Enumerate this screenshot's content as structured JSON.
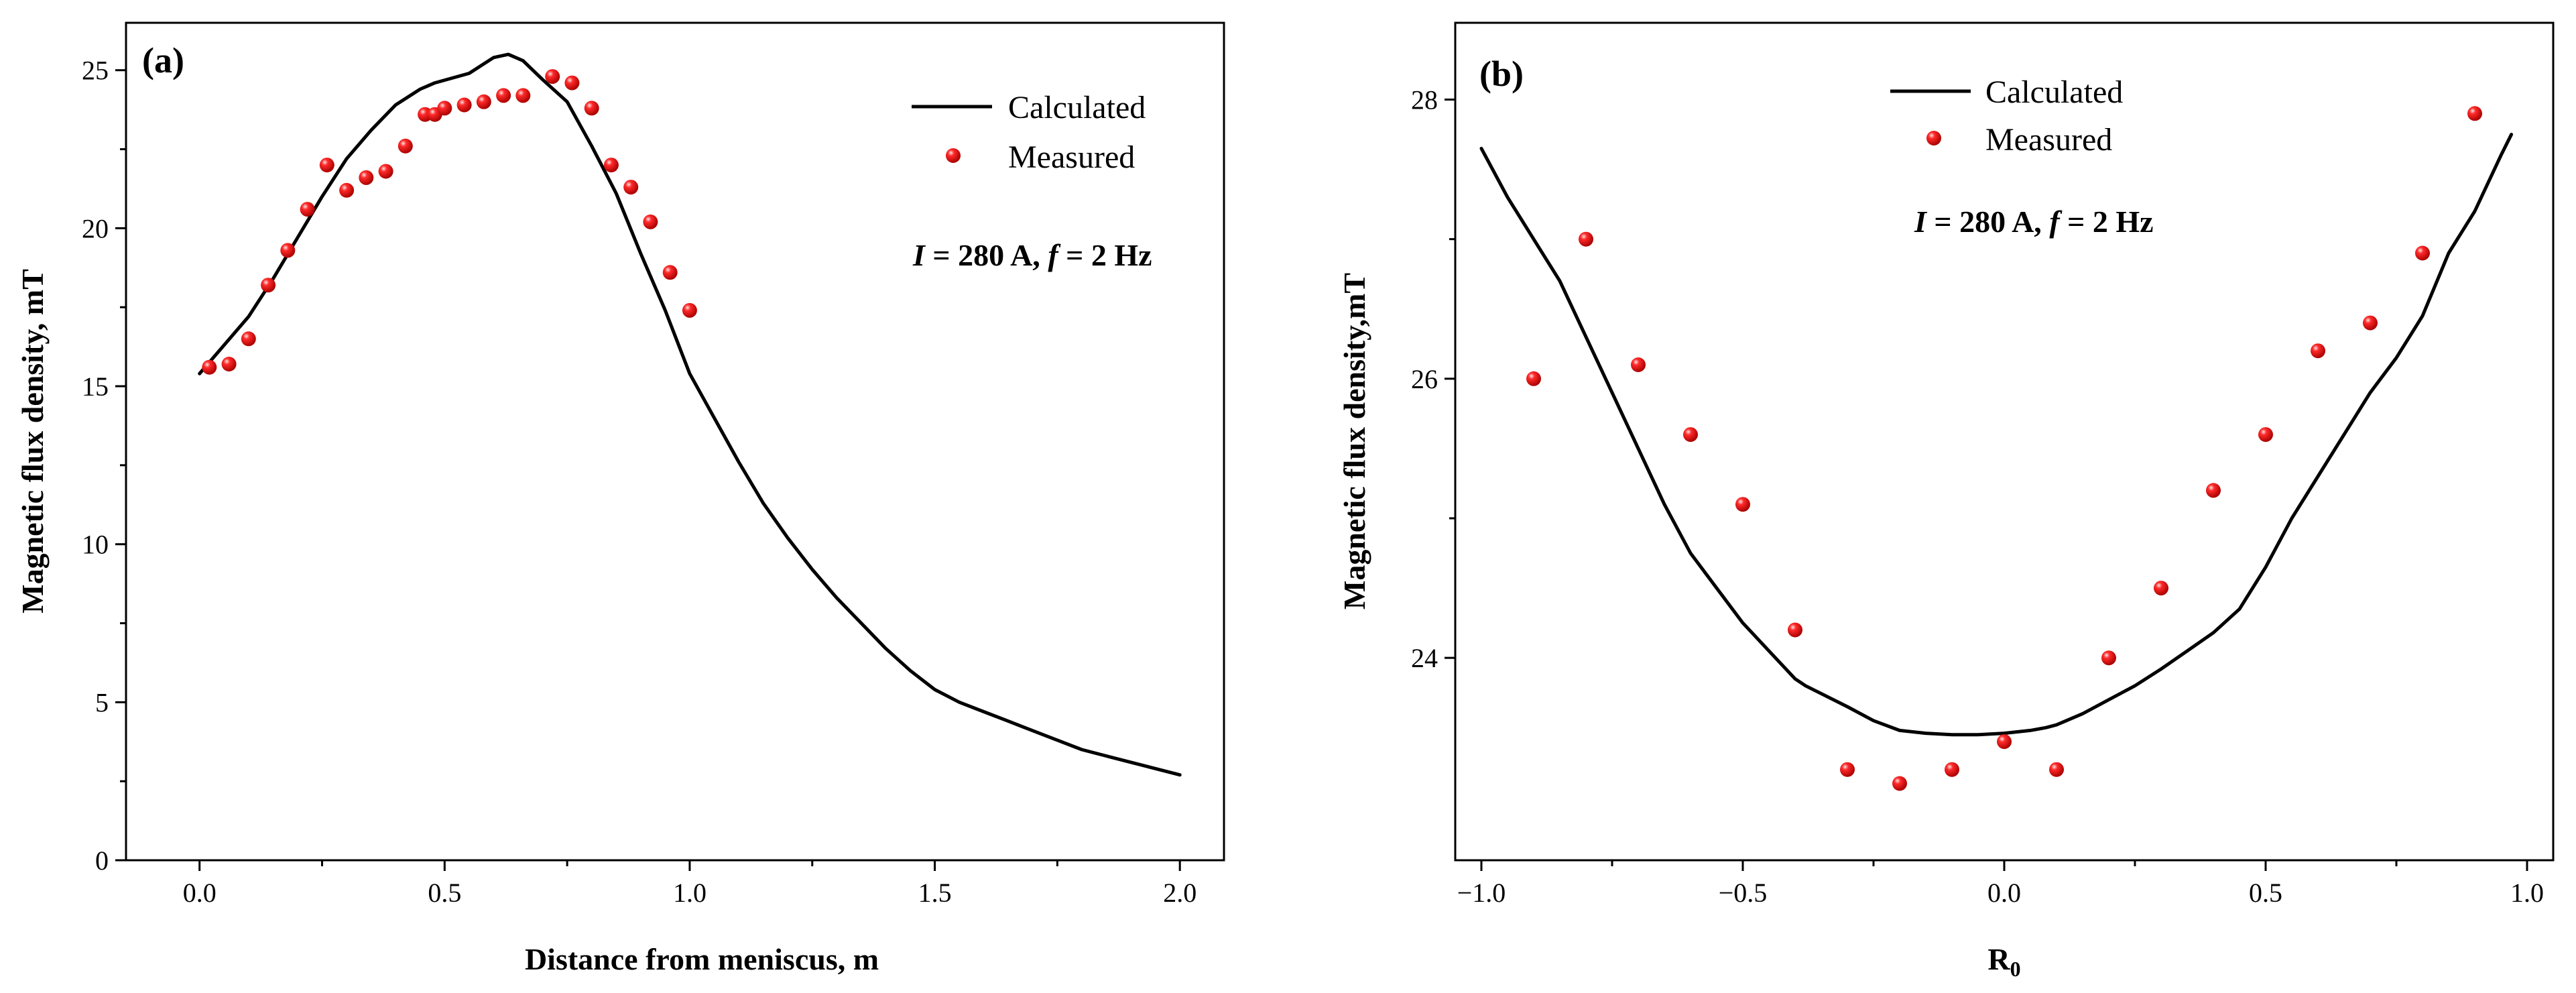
{
  "chart_data": [
    {
      "type": "line",
      "panel_label": "(a)",
      "xlabel": "Distance from meniscus, m",
      "ylabel": "Magnetic flux density, mT",
      "xlim": [
        -0.15,
        2.09
      ],
      "ylim": [
        0,
        26.5
      ],
      "xticks": [
        0.0,
        0.5,
        1.0,
        1.5,
        2.0
      ],
      "xtick_labels": [
        "0.0",
        "0.5",
        "1.0",
        "1.5",
        "2.0"
      ],
      "yticks": [
        0,
        5,
        10,
        15,
        20,
        25
      ],
      "ytick_labels": [
        "0",
        "5",
        "10",
        "15",
        "20",
        "25"
      ],
      "legend": {
        "position": "top-right",
        "line_label": "Calculated",
        "marker_label": "Measured"
      },
      "annotation": {
        "i": "I",
        "i_rest": " = 280 A, ",
        "f": "f",
        "f_rest": " = 2 Hz"
      },
      "series": [
        {
          "name": "Calculated",
          "kind": "line",
          "color": "#000000",
          "x": [
            0.0,
            0.05,
            0.1,
            0.15,
            0.2,
            0.25,
            0.3,
            0.35,
            0.4,
            0.45,
            0.48,
            0.55,
            0.6,
            0.63,
            0.66,
            0.7,
            0.75,
            0.8,
            0.85,
            0.9,
            0.95,
            1.0,
            1.05,
            1.1,
            1.15,
            1.2,
            1.25,
            1.3,
            1.35,
            1.4,
            1.45,
            1.5,
            1.55,
            1.6,
            1.65,
            1.7,
            1.75,
            1.8,
            1.85,
            1.9,
            1.95,
            2.0
          ],
          "y": [
            15.4,
            16.3,
            17.2,
            18.4,
            19.7,
            21.0,
            22.2,
            23.1,
            23.9,
            24.4,
            24.6,
            24.9,
            25.4,
            25.5,
            25.3,
            24.7,
            24.0,
            22.6,
            21.1,
            19.2,
            17.4,
            15.4,
            14.0,
            12.6,
            11.3,
            10.2,
            9.2,
            8.3,
            7.5,
            6.7,
            6.0,
            5.4,
            5.0,
            4.7,
            4.4,
            4.1,
            3.8,
            3.5,
            3.3,
            3.1,
            2.9,
            2.7
          ]
        },
        {
          "name": "Measured",
          "kind": "scatter",
          "color": "#e8001a",
          "x": [
            0.02,
            0.06,
            0.1,
            0.14,
            0.18,
            0.22,
            0.26,
            0.3,
            0.34,
            0.38,
            0.42,
            0.46,
            0.48,
            0.5,
            0.54,
            0.58,
            0.62,
            0.66,
            0.72,
            0.76,
            0.8,
            0.84,
            0.88,
            0.92,
            0.96,
            1.0
          ],
          "y": [
            15.6,
            15.7,
            16.5,
            18.2,
            19.3,
            20.6,
            22.0,
            21.2,
            21.6,
            21.8,
            22.6,
            23.6,
            23.6,
            23.8,
            23.9,
            24.0,
            24.2,
            24.2,
            24.8,
            24.6,
            23.8,
            22.0,
            21.3,
            20.2,
            18.6,
            17.4
          ]
        }
      ]
    },
    {
      "type": "line",
      "panel_label": "(b)",
      "xlabel": "R",
      "xlabel_sub": "0",
      "ylabel": "Magnetic flux density,mT",
      "xlim": [
        -1.05,
        1.05
      ],
      "ylim": [
        22.55,
        28.55
      ],
      "xticks": [
        -1.0,
        -0.5,
        0.0,
        0.5,
        1.0
      ],
      "xtick_labels": [
        "−1.0",
        "−0.5",
        "0.0",
        "0.5",
        "1.0"
      ],
      "yticks": [
        24,
        26,
        28
      ],
      "ytick_labels": [
        "24",
        "26",
        "28"
      ],
      "legend": {
        "position": "top-center",
        "line_label": "Calculated",
        "marker_label": "Measured"
      },
      "annotation": {
        "i": "I",
        "i_rest": " = 280 A, ",
        "f": "f",
        "f_rest": " = 2 Hz"
      },
      "series": [
        {
          "name": "Calculated",
          "kind": "line",
          "color": "#000000",
          "x": [
            -1.0,
            -0.95,
            -0.9,
            -0.85,
            -0.8,
            -0.75,
            -0.7,
            -0.65,
            -0.6,
            -0.55,
            -0.5,
            -0.45,
            -0.4,
            -0.38,
            -0.3,
            -0.25,
            -0.2,
            -0.15,
            -0.1,
            -0.05,
            0.0,
            0.05,
            0.08,
            0.1,
            0.15,
            0.2,
            0.25,
            0.3,
            0.35,
            0.4,
            0.45,
            0.5,
            0.55,
            0.6,
            0.65,
            0.7,
            0.75,
            0.8,
            0.85,
            0.9,
            0.95,
            0.97
          ],
          "y": [
            27.65,
            27.3,
            27.0,
            26.7,
            26.3,
            25.9,
            25.5,
            25.1,
            24.75,
            24.5,
            24.25,
            24.05,
            23.85,
            23.8,
            23.65,
            23.55,
            23.48,
            23.46,
            23.45,
            23.45,
            23.46,
            23.48,
            23.5,
            23.52,
            23.6,
            23.7,
            23.8,
            23.92,
            24.05,
            24.18,
            24.35,
            24.65,
            25.0,
            25.3,
            25.6,
            25.9,
            26.15,
            26.45,
            26.9,
            27.2,
            27.6,
            27.75
          ]
        },
        {
          "name": "Measured",
          "kind": "scatter",
          "color": "#e8001a",
          "x": [
            -0.9,
            -0.8,
            -0.7,
            -0.6,
            -0.5,
            -0.4,
            -0.3,
            -0.2,
            -0.1,
            0.0,
            0.1,
            0.2,
            0.3,
            0.4,
            0.5,
            0.6,
            0.7,
            0.8,
            0.9
          ],
          "y": [
            26.0,
            27.0,
            26.1,
            25.6,
            25.1,
            24.2,
            23.2,
            23.1,
            23.2,
            23.4,
            23.2,
            24.0,
            24.5,
            25.2,
            25.6,
            26.2,
            26.4,
            26.9,
            27.9
          ]
        }
      ]
    }
  ]
}
